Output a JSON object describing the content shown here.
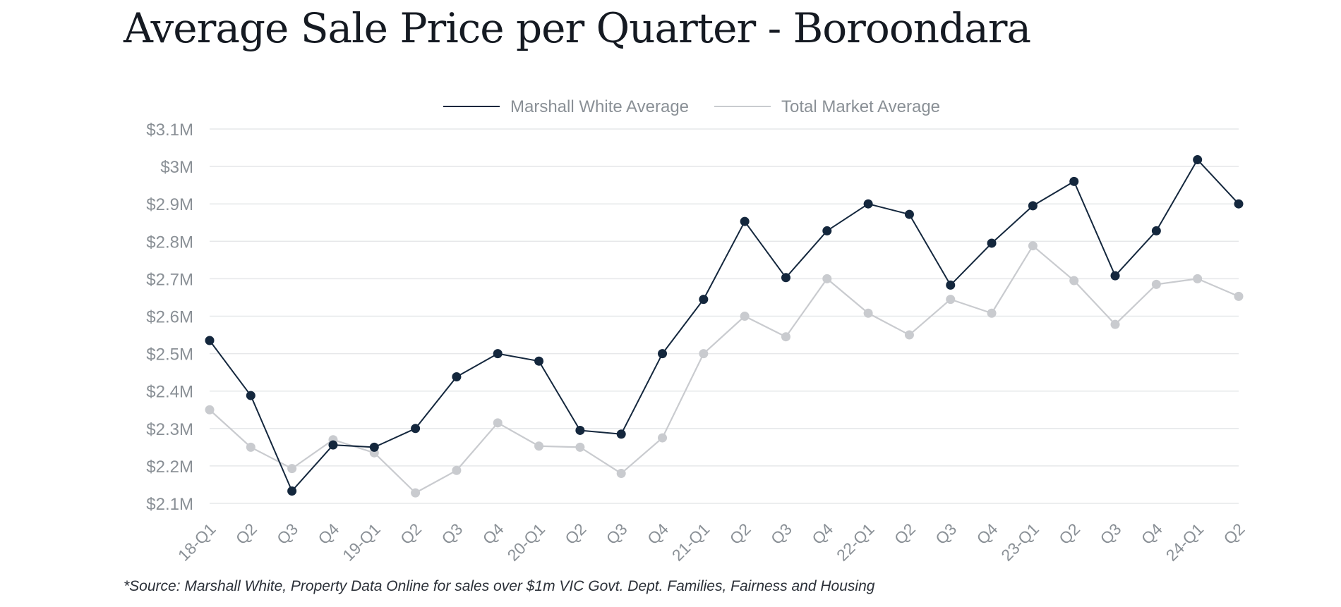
{
  "title": "Average Sale Price per Quarter - Boroondara",
  "source_note": "*Source: Marshall White, Property Data Online for sales over $1m VIC Govt. Dept. Families, Fairness and Housing",
  "colors": {
    "primary": "#14273d",
    "secondary": "#c9cbcf",
    "grid": "#e6e8ea",
    "axis_text": "#8a9096"
  },
  "chart_data": {
    "type": "line",
    "title": "Average Sale Price per Quarter - Boroondara",
    "xlabel": "",
    "ylabel": "",
    "ylim": [
      2.1,
      3.1
    ],
    "grid": true,
    "legend_position": "top-center",
    "y_ticks": [
      {
        "value": 3.1,
        "label": "$3.1M"
      },
      {
        "value": 3.0,
        "label": "$3M"
      },
      {
        "value": 2.9,
        "label": "$2.9M"
      },
      {
        "value": 2.8,
        "label": "$2.8M"
      },
      {
        "value": 2.7,
        "label": "$2.7M"
      },
      {
        "value": 2.6,
        "label": "$2.6M"
      },
      {
        "value": 2.5,
        "label": "$2.5M"
      },
      {
        "value": 2.4,
        "label": "$2.4M"
      },
      {
        "value": 2.3,
        "label": "$2.3M"
      },
      {
        "value": 2.2,
        "label": "$2.2M"
      },
      {
        "value": 2.1,
        "label": "$2.1M"
      }
    ],
    "categories": [
      "18-Q1",
      "Q2",
      "Q3",
      "Q4",
      "19-Q1",
      "Q2",
      "Q3",
      "Q4",
      "20-Q1",
      "Q2",
      "Q3",
      "Q4",
      "21-Q1",
      "Q2",
      "Q3",
      "Q4",
      "22-Q1",
      "Q2",
      "Q3",
      "Q4",
      "23-Q1",
      "Q2",
      "Q3",
      "Q4",
      "24-Q1",
      "Q2"
    ],
    "series": [
      {
        "name": "Marshall White Average",
        "color": "#14273d",
        "values": [
          2.535,
          2.388,
          2.133,
          2.256,
          2.25,
          2.3,
          2.438,
          2.5,
          2.48,
          2.295,
          2.285,
          2.5,
          2.645,
          2.853,
          2.703,
          2.828,
          2.9,
          2.872,
          2.683,
          2.795,
          2.895,
          2.96,
          2.708,
          2.828,
          3.018,
          2.9
        ]
      },
      {
        "name": "Total Market Average",
        "color": "#c9cbcf",
        "values": [
          2.35,
          2.25,
          2.193,
          2.27,
          2.235,
          2.128,
          2.188,
          2.315,
          2.253,
          2.25,
          2.18,
          2.275,
          2.5,
          2.6,
          2.545,
          2.7,
          2.608,
          2.55,
          2.645,
          2.608,
          2.788,
          2.695,
          2.578,
          2.685,
          2.7,
          2.653
        ]
      }
    ]
  }
}
